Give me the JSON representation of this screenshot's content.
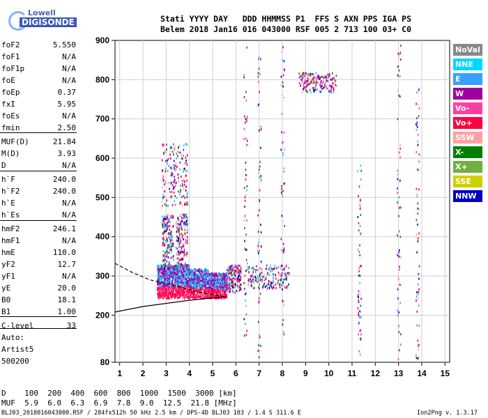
{
  "logo": {
    "line1": "Lowell",
    "line2": "DIGISONDE"
  },
  "header": {
    "line1": "Stati YYYY DAY   DDD HHMMSS P1  FFS S AXN PPS IGA PS",
    "line2": "Belem 2018 Jan16 016 043000 RSF 005 2 713 100 03+ C0"
  },
  "params": [
    {
      "name": "foF2",
      "value": "5.550"
    },
    {
      "name": "foF1",
      "value": "N/A"
    },
    {
      "name": "foF1p",
      "value": "N/A"
    },
    {
      "name": "foE",
      "value": "N/A"
    },
    {
      "name": "foEp",
      "value": "0.37"
    },
    {
      "name": "fxI",
      "value": "5.95"
    },
    {
      "name": "foEs",
      "value": "N/A"
    },
    {
      "name": "fmin",
      "value": "2.50"
    },
    {
      "name": "MUF(D)",
      "value": "21.84"
    },
    {
      "name": "M(D)",
      "value": "3.93"
    },
    {
      "name": "D",
      "value": "N/A"
    },
    {
      "name": "h`F",
      "value": "240.0"
    },
    {
      "name": "h`F2",
      "value": "240.0"
    },
    {
      "name": "h`E",
      "value": "N/A"
    },
    {
      "name": "h`Es",
      "value": "N/A"
    },
    {
      "name": "hmF2",
      "value": "246.1"
    },
    {
      "name": "hmF1",
      "value": "N/A"
    },
    {
      "name": "hmE",
      "value": "110.0"
    },
    {
      "name": "yF2",
      "value": "12.7"
    },
    {
      "name": "yF1",
      "value": "N/A"
    },
    {
      "name": "yE",
      "value": "20.0"
    },
    {
      "name": "B0",
      "value": "18.1"
    },
    {
      "name": "B1",
      "value": "1.00"
    },
    {
      "name": "C-level",
      "value": "33"
    }
  ],
  "auto": {
    "line1": "Auto:",
    "line2": "Artist5",
    "line3": "500200"
  },
  "table": {
    "line1": "D    100  200  400  600  800  1000  1500  3000 [km]",
    "line2": "MUF  5.9  6.0  6.3  6.9  7.8  9.0  12.5  21.8 [MHz]"
  },
  "footer": {
    "left": "BLJ03_2018016043000.RSF / 284fx512h 50 kHz 2.5 km / DPS-4D BLJ03 103 / 1.4 S 311.6 E",
    "right": "Ion2Png v. 1.3.17"
  },
  "legend": [
    {
      "label": "NoVal",
      "color": "#888888"
    },
    {
      "label": "NNE",
      "color": "#00d8ff"
    },
    {
      "label": "E",
      "color": "#3aa0ff"
    },
    {
      "label": "W",
      "color": "#a000a0"
    },
    {
      "label": "Vo-",
      "color": "#ff40a0"
    },
    {
      "label": "Vo+",
      "color": "#ff0040"
    },
    {
      "label": "SSW",
      "color": "#ffa0a0"
    },
    {
      "label": "X-",
      "color": "#008000"
    },
    {
      "label": "X+",
      "color": "#70b040"
    },
    {
      "label": "SSE",
      "color": "#d0d000"
    },
    {
      "label": "NNW",
      "color": "#0000c0"
    }
  ],
  "chart_data": {
    "type": "scatter",
    "x_ticks": [
      1,
      2,
      3,
      4,
      5,
      6,
      7,
      8,
      9,
      10,
      11,
      12,
      13,
      14,
      15
    ],
    "y_ticks": [
      80,
      200,
      300,
      400,
      500,
      600,
      700,
      800,
      900
    ],
    "xlim": [
      0.8,
      15.2
    ],
    "ylim": [
      80,
      900
    ],
    "grid": true,
    "legend_position": "right",
    "trace_curves": [
      {
        "name": "profile-lower",
        "style": "solid",
        "points": [
          [
            0.8,
            208
          ],
          [
            2,
            222
          ],
          [
            3,
            230
          ],
          [
            4,
            238
          ],
          [
            5,
            244
          ],
          [
            5.6,
            247
          ]
        ]
      },
      {
        "name": "profile-upper",
        "style": "dashed",
        "points": [
          [
            0.8,
            332
          ],
          [
            1.5,
            310
          ],
          [
            2.3,
            290
          ],
          [
            3.2,
            278
          ],
          [
            4.2,
            262
          ],
          [
            5.0,
            252
          ],
          [
            5.5,
            247
          ]
        ]
      }
    ],
    "echo_clusters": [
      {
        "x": [
          2.6,
          3.3
        ],
        "y": [
          245,
          330
        ],
        "dense": true
      },
      {
        "x": [
          3.3,
          4.0
        ],
        "y": [
          245,
          330
        ],
        "dense": true
      },
      {
        "x": [
          4.0,
          4.8
        ],
        "y": [
          245,
          320
        ],
        "dense": true
      },
      {
        "x": [
          4.8,
          5.6
        ],
        "y": [
          245,
          310
        ],
        "dense": true
      },
      {
        "x": [
          2.8,
          3.3
        ],
        "y": [
          320,
          460
        ],
        "dense": false
      },
      {
        "x": [
          3.4,
          3.9
        ],
        "y": [
          320,
          460
        ],
        "dense": false
      },
      {
        "x": [
          2.8,
          3.9
        ],
        "y": [
          480,
          640
        ],
        "dense": false
      },
      {
        "x": [
          5.6,
          6.2
        ],
        "y": [
          260,
          330
        ],
        "dense": false
      },
      {
        "x": [
          6.5,
          8.3
        ],
        "y": [
          270,
          330
        ],
        "dense": false
      },
      {
        "x": [
          8.7,
          10.3
        ],
        "y": [
          770,
          820
        ],
        "dense": false
      }
    ],
    "echo_columns": [
      {
        "x": 6.4,
        "y": [
          150,
          890
        ]
      },
      {
        "x": 7.0,
        "y": [
          90,
          880
        ]
      },
      {
        "x": 8.0,
        "y": [
          150,
          890
        ]
      },
      {
        "x": 11.3,
        "y": [
          90,
          600
        ]
      },
      {
        "x": 13.0,
        "y": [
          90,
          890
        ]
      },
      {
        "x": 13.8,
        "y": [
          90,
          800
        ]
      }
    ]
  }
}
